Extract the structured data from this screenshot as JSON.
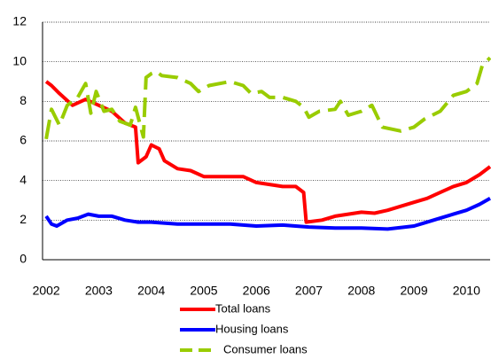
{
  "chart_data": {
    "type": "line",
    "xlim": [
      2001.93,
      2010.45
    ],
    "xticks": [
      2002,
      2003,
      2004,
      2005,
      2006,
      2007,
      2008,
      2009,
      2010
    ],
    "ylim": [
      0,
      12
    ],
    "yticks": [
      0,
      2,
      4,
      6,
      8,
      10,
      12
    ],
    "grid": true,
    "legend": "bottom",
    "series": [
      {
        "name": "Total loans",
        "color": "#ff0000",
        "dashed": false,
        "x": [
          2002.0,
          2002.1,
          2002.25,
          2002.5,
          2002.75,
          2003.0,
          2003.25,
          2003.5,
          2003.7,
          2003.75,
          2003.9,
          2004.0,
          2004.15,
          2004.25,
          2004.5,
          2004.75,
          2005.0,
          2005.25,
          2005.5,
          2005.75,
          2006.0,
          2006.25,
          2006.5,
          2006.75,
          2006.9,
          2006.95,
          2007.25,
          2007.5,
          2007.75,
          2008.0,
          2008.25,
          2008.5,
          2008.75,
          2009.0,
          2009.25,
          2009.5,
          2009.75,
          2010.0,
          2010.25,
          2010.45
        ],
        "values": [
          9.0,
          8.8,
          8.4,
          7.8,
          8.1,
          7.8,
          7.5,
          6.9,
          6.7,
          4.9,
          5.2,
          5.8,
          5.6,
          5.0,
          4.6,
          4.5,
          4.2,
          4.2,
          4.2,
          4.2,
          3.9,
          3.8,
          3.7,
          3.7,
          3.4,
          1.9,
          2.0,
          2.2,
          2.3,
          2.4,
          2.35,
          2.5,
          2.7,
          2.9,
          3.1,
          3.4,
          3.7,
          3.9,
          4.3,
          4.7
        ]
      },
      {
        "name": "Housing loans",
        "color": "#0000ff",
        "dashed": false,
        "x": [
          2002.0,
          2002.1,
          2002.2,
          2002.4,
          2002.6,
          2002.8,
          2003.0,
          2003.25,
          2003.5,
          2003.75,
          2004.0,
          2004.5,
          2005.0,
          2005.5,
          2006.0,
          2006.5,
          2007.0,
          2007.5,
          2008.0,
          2008.5,
          2009.0,
          2009.25,
          2009.5,
          2009.75,
          2010.0,
          2010.25,
          2010.45
        ],
        "values": [
          2.2,
          1.8,
          1.7,
          2.0,
          2.1,
          2.3,
          2.2,
          2.2,
          2.0,
          1.9,
          1.9,
          1.8,
          1.8,
          1.8,
          1.7,
          1.75,
          1.65,
          1.6,
          1.6,
          1.55,
          1.7,
          1.9,
          2.1,
          2.3,
          2.5,
          2.8,
          3.1
        ]
      },
      {
        "name": "Consumer loans",
        "color": "#99cc00",
        "dashed": true,
        "x": [
          2002.0,
          2002.1,
          2002.25,
          2002.4,
          2002.6,
          2002.75,
          2002.85,
          2002.95,
          2003.1,
          2003.25,
          2003.4,
          2003.6,
          2003.7,
          2003.85,
          2003.9,
          2004.0,
          2004.1,
          2004.2,
          2004.5,
          2004.75,
          2004.9,
          2005.1,
          2005.5,
          2005.75,
          2005.9,
          2006.1,
          2006.25,
          2006.5,
          2006.75,
          2006.9,
          2007.0,
          2007.2,
          2007.5,
          2007.6,
          2007.75,
          2008.0,
          2008.2,
          2008.4,
          2008.75,
          2009.0,
          2009.2,
          2009.5,
          2009.75,
          2010.0,
          2010.2,
          2010.3,
          2010.45
        ],
        "values": [
          6.1,
          7.6,
          6.8,
          7.8,
          8.2,
          8.9,
          7.4,
          8.5,
          7.5,
          7.6,
          7.0,
          6.8,
          7.7,
          6.2,
          9.2,
          9.4,
          9.5,
          9.3,
          9.2,
          8.9,
          8.5,
          8.8,
          9.0,
          8.8,
          8.4,
          8.5,
          8.2,
          8.2,
          8.0,
          7.7,
          7.2,
          7.5,
          7.6,
          8.0,
          7.3,
          7.5,
          7.8,
          6.7,
          6.5,
          6.7,
          7.1,
          7.5,
          8.3,
          8.5,
          8.9,
          9.8,
          10.2
        ]
      }
    ]
  }
}
